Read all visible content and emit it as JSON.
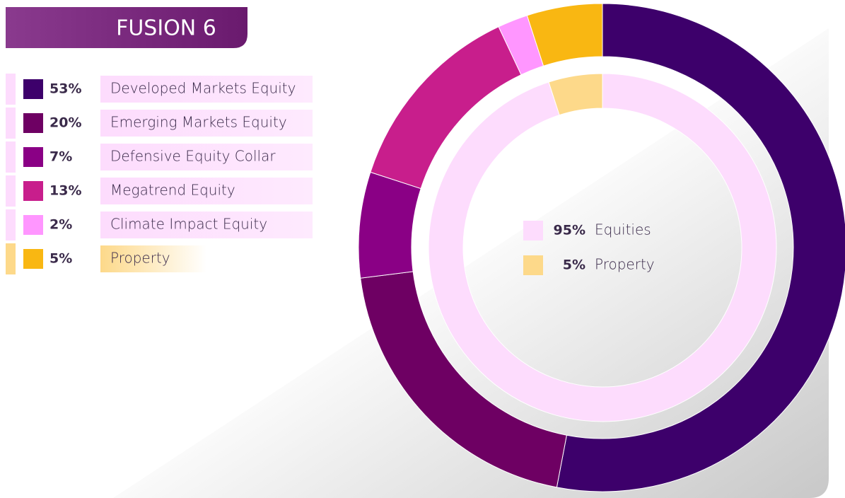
{
  "chart_data": {
    "type": "pie",
    "title": "FUSION 6",
    "categories": [
      "Developed Markets Equity",
      "Emerging Markets Equity",
      "Defensive Equity Collar",
      "Megatrend Equity",
      "Climate Impact Equity",
      "Property"
    ],
    "values": [
      53,
      20,
      7,
      13,
      2,
      5
    ],
    "value_labels": [
      "53%",
      "20%",
      "7%",
      "13%",
      "2%",
      "5%"
    ],
    "colors": [
      "#3d006b",
      "#6e0063",
      "#8a0085",
      "#c81e8c",
      "#ff96ff",
      "#f9b712"
    ],
    "inner": {
      "categories": [
        "Equities",
        "Property"
      ],
      "values": [
        95,
        5
      ],
      "value_labels": [
        "95%",
        "5%"
      ],
      "colors": [
        "#fddcfd",
        "#fdd98a"
      ]
    }
  }
}
